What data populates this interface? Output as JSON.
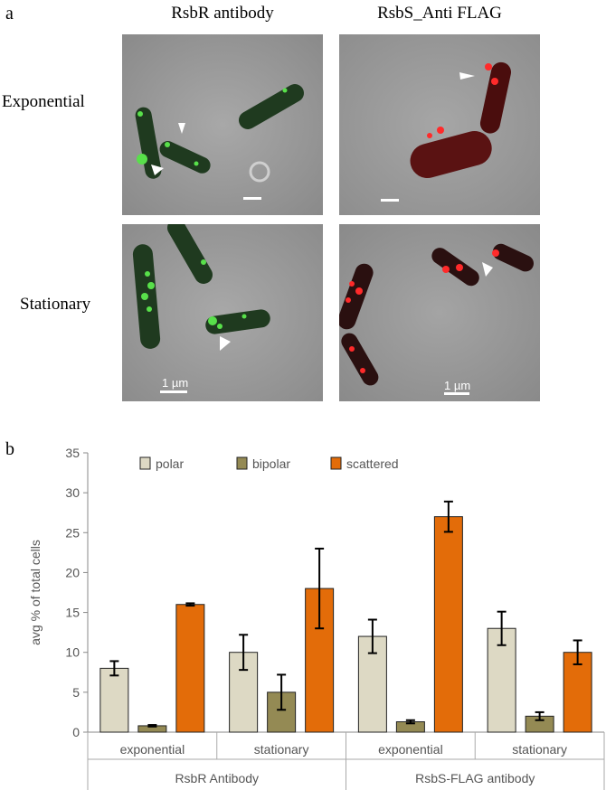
{
  "figure": {
    "panel_a_label": "a",
    "panel_b_label": "b",
    "columns": [
      "RsbR antibody",
      "RsbS_Anti FLAG"
    ],
    "rows": [
      "Exponential",
      "Stationary"
    ],
    "scale_bar_label": "1 µm",
    "colors": {
      "background_phase": "#9a9a9a",
      "green_signal": "#58e04a",
      "red_signal": "#ff2a2a",
      "arrowhead": "#ffffff"
    }
  },
  "chart_data": {
    "type": "bar",
    "title": "",
    "ylabel": "avg % of total cells",
    "xlabel": "",
    "ylim": [
      0,
      35
    ],
    "yticks": [
      0,
      5,
      10,
      15,
      20,
      25,
      30,
      35
    ],
    "grid": false,
    "legend_position": "top",
    "categories": [
      "exponential",
      "stationary",
      "exponential",
      "stationary"
    ],
    "groups": [
      {
        "label": "RsbR Antibody",
        "categories": [
          "exponential",
          "stationary"
        ]
      },
      {
        "label": "RsbS-FLAG antibody",
        "categories": [
          "exponential",
          "stationary"
        ]
      }
    ],
    "series": [
      {
        "name": "polar",
        "color": "#ddd9c4",
        "values": [
          8,
          10,
          12,
          13
        ],
        "errors": [
          0.9,
          2.2,
          2.1,
          2.1
        ]
      },
      {
        "name": "bipolar",
        "color": "#948a54",
        "values": [
          0.8,
          5,
          1.3,
          2
        ],
        "errors": [
          0.1,
          2.2,
          0.2,
          0.5
        ]
      },
      {
        "name": "scattered",
        "color": "#e36c09",
        "values": [
          16,
          18,
          27,
          10
        ],
        "errors": [
          0.15,
          5,
          1.9,
          1.5
        ]
      }
    ]
  }
}
